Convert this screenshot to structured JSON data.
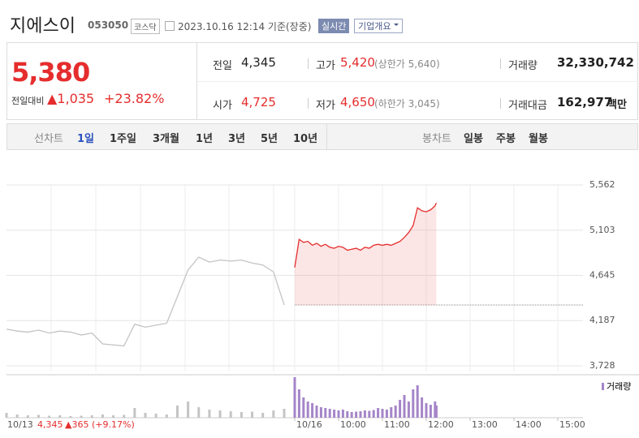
{
  "header": {
    "title": "지에스이",
    "code": "053050",
    "market": "코스닥",
    "timestamp": "2023.10.16 12:14 기준(장중)",
    "buttons": [
      "실시간",
      "기업개요"
    ]
  },
  "quote": {
    "price": "5,380",
    "change_label": "전일대비",
    "change": "▲1,035",
    "rate": "+23.82%",
    "items": [
      {
        "label": "전일",
        "value": "4,345"
      },
      {
        "label": "고가",
        "value": "5,420",
        "note": "(상한가 5,640)"
      },
      {
        "label": "거래량",
        "value": "32,330,742"
      },
      {
        "label": "시가",
        "value": "4,725"
      },
      {
        "label": "저가",
        "value": "4,650",
        "note": "(하한가 3,045)"
      },
      {
        "label": "거래대금",
        "value": "162,977",
        "unit": "백만"
      }
    ]
  },
  "tabs": {
    "line_label": "선차트",
    "line_periods": [
      "1일",
      "1주일",
      "3개월",
      "1년",
      "3년",
      "5년",
      "10년"
    ],
    "selected": 0,
    "candle_label": "봉차트",
    "candle_periods": [
      "일봉",
      "주봉",
      "월봉"
    ]
  },
  "chart_data": {
    "type": "line",
    "ylim": [
      3728,
      5562
    ],
    "yticks": [
      {
        "value": 3728,
        "label": "3,728"
      },
      {
        "value": 4187,
        "label": "4,187"
      },
      {
        "value": 4645,
        "label": "4,645"
      },
      {
        "value": 5103,
        "label": "5,103"
      },
      {
        "value": 5562,
        "label": "5,562"
      }
    ],
    "xlim": [
      9,
      15.5
    ],
    "xticks": [
      {
        "value": 9,
        "label": "10/16"
      },
      {
        "value": 10,
        "label": "10:00"
      },
      {
        "value": 11,
        "label": "11:00"
      },
      {
        "value": 12,
        "label": "12:00"
      },
      {
        "value": 13,
        "label": "13:00"
      },
      {
        "value": 14,
        "label": "14:00"
      },
      {
        "value": 15,
        "label": "15:00"
      }
    ],
    "prev_close": 4345,
    "series": [
      {
        "name": "10/13",
        "color": "#c4c4c4",
        "x": [
          9,
          9.25,
          9.5,
          9.75,
          10,
          10.25,
          10.5,
          10.75,
          11,
          11.25,
          11.5,
          11.75,
          12,
          12.25,
          12.5,
          12.75,
          13,
          13.25,
          13.5,
          13.75,
          14,
          14.25,
          14.5,
          14.75,
          15,
          15.25,
          15.5
        ],
        "values": [
          4100,
          4080,
          4070,
          4090,
          4060,
          4080,
          4070,
          4040,
          4060,
          3950,
          3940,
          3930,
          4150,
          4120,
          4140,
          4160,
          4430,
          4700,
          4830,
          4780,
          4800,
          4790,
          4800,
          4770,
          4750,
          4680,
          4345
        ],
        "volume": [
          60,
          40,
          30,
          35,
          25,
          30,
          20,
          25,
          30,
          40,
          30,
          35,
          120,
          60,
          50,
          40,
          150,
          200,
          130,
          100,
          90,
          80,
          70,
          75,
          60,
          90,
          110
        ]
      },
      {
        "name": "10/16",
        "color": "#e52d2d",
        "x": [
          9,
          9.1,
          9.2,
          9.3,
          9.4,
          9.5,
          9.6,
          9.7,
          9.8,
          9.9,
          10,
          10.1,
          10.2,
          10.3,
          10.4,
          10.5,
          10.6,
          10.7,
          10.8,
          10.9,
          11,
          11.1,
          11.2,
          11.3,
          11.4,
          11.5,
          11.6,
          11.7,
          11.8,
          11.9,
          12,
          12.1,
          12.2,
          12.23
        ],
        "values": [
          4725,
          5010,
          4980,
          4990,
          4950,
          4970,
          4940,
          4960,
          4930,
          4920,
          4940,
          4930,
          4900,
          4910,
          4920,
          4900,
          4930,
          4920,
          4950,
          4960,
          4950,
          4960,
          4950,
          4970,
          4990,
          5030,
          5080,
          5150,
          5330,
          5300,
          5290,
          5310,
          5350,
          5380
        ],
        "volume": [
          500,
          350,
          250,
          200,
          180,
          150,
          130,
          120,
          110,
          100,
          90,
          100,
          80,
          70,
          75,
          80,
          90,
          85,
          95,
          120,
          110,
          100,
          130,
          150,
          220,
          280,
          200,
          350,
          400,
          250,
          180,
          160,
          200,
          150
        ]
      }
    ],
    "volume_label": "거래량",
    "volume_ylim": [
      0,
      500
    ],
    "volume_colors": [
      "#c4c4c4",
      "#a585c9"
    ],
    "footer": {
      "date": "10/13",
      "price": "4,345",
      "change": "▲365",
      "rate": "(+9.17%)"
    }
  }
}
